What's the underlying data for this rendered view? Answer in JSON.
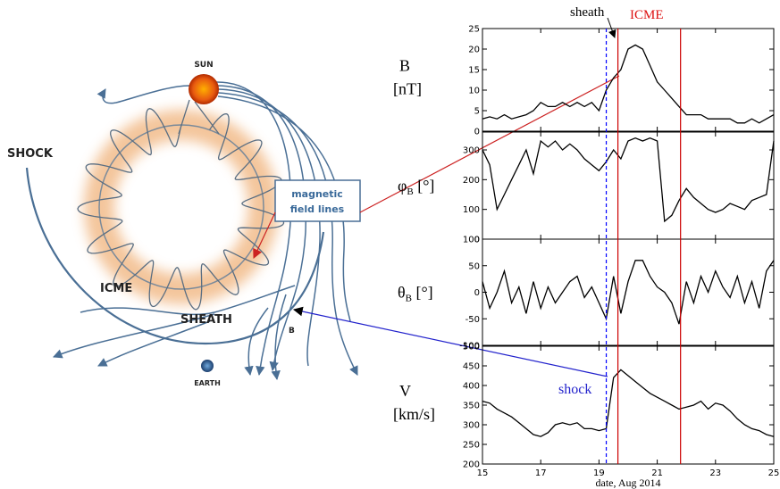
{
  "diagram": {
    "labels": {
      "sun": "SUN",
      "shock": "SHOCK",
      "box_line1": "magnetic",
      "box_line2": "field lines",
      "icme": "ICME",
      "sheath": "SHEATH",
      "b": "B",
      "earth": "EARTH"
    }
  },
  "chart_data": [
    {
      "type": "line",
      "ylabel": {
        "symbol": "B",
        "unit": "[nT]"
      },
      "color": "#000000",
      "xlim": [
        15,
        25
      ],
      "ylim": [
        0,
        25
      ],
      "yticks": [
        0,
        5,
        10,
        15,
        20,
        25
      ],
      "annotations": {
        "sheath": "sheath",
        "icme": "ICME"
      },
      "x": [
        15,
        15.25,
        15.5,
        15.75,
        16,
        16.25,
        16.5,
        16.75,
        17,
        17.25,
        17.5,
        17.75,
        18,
        18.25,
        18.5,
        18.75,
        19,
        19.25,
        19.5,
        19.75,
        20,
        20.25,
        20.5,
        20.75,
        21,
        21.25,
        21.5,
        21.75,
        22,
        22.25,
        22.5,
        22.75,
        23,
        23.25,
        23.5,
        23.75,
        24,
        24.25,
        24.5,
        24.75,
        25
      ],
      "values": [
        3,
        3.5,
        3,
        4,
        3,
        3.5,
        4,
        5,
        7,
        6,
        6,
        7,
        6,
        7,
        6,
        7,
        5,
        10,
        13,
        15,
        20,
        21,
        20,
        16,
        12,
        10,
        8,
        6,
        4,
        4,
        4,
        3,
        3,
        3,
        3,
        2,
        2,
        3,
        2,
        3,
        4
      ]
    },
    {
      "type": "line",
      "ylabel": {
        "symbol": "φ",
        "sub": "B",
        "unit": " [°]"
      },
      "color": "#000000",
      "xlim": [
        15,
        25
      ],
      "ylim": [
        0,
        360
      ],
      "yticks": [
        0,
        100,
        200,
        300
      ],
      "x": [
        15,
        15.25,
        15.5,
        15.75,
        16,
        16.25,
        16.5,
        16.75,
        17,
        17.25,
        17.5,
        17.75,
        18,
        18.25,
        18.5,
        18.75,
        19,
        19.25,
        19.5,
        19.75,
        20,
        20.25,
        20.5,
        20.75,
        21,
        21.25,
        21.5,
        21.75,
        22,
        22.25,
        22.5,
        22.75,
        23,
        23.25,
        23.5,
        23.75,
        24,
        24.25,
        24.5,
        24.75,
        25
      ],
      "values": [
        300,
        250,
        100,
        150,
        200,
        250,
        300,
        220,
        330,
        310,
        330,
        300,
        320,
        300,
        270,
        250,
        230,
        260,
        300,
        270,
        330,
        340,
        330,
        340,
        330,
        60,
        80,
        130,
        170,
        140,
        120,
        100,
        90,
        100,
        120,
        110,
        100,
        130,
        140,
        150,
        330
      ]
    },
    {
      "type": "line",
      "ylabel": {
        "symbol": "θ",
        "sub": "B",
        "unit": " [°]"
      },
      "color": "#000000",
      "xlim": [
        15,
        25
      ],
      "ylim": [
        -100,
        100
      ],
      "yticks": [
        -100,
        -50,
        0,
        50,
        100
      ],
      "x": [
        15,
        15.25,
        15.5,
        15.75,
        16,
        16.25,
        16.5,
        16.75,
        17,
        17.25,
        17.5,
        17.75,
        18,
        18.25,
        18.5,
        18.75,
        19,
        19.25,
        19.5,
        19.75,
        20,
        20.25,
        20.5,
        20.75,
        21,
        21.25,
        21.5,
        21.75,
        22,
        22.25,
        22.5,
        22.75,
        23,
        23.25,
        23.5,
        23.75,
        24,
        24.25,
        24.5,
        24.75,
        25
      ],
      "values": [
        20,
        -30,
        0,
        40,
        -20,
        10,
        -40,
        20,
        -30,
        10,
        -20,
        0,
        20,
        30,
        -10,
        10,
        -20,
        -50,
        30,
        -40,
        20,
        60,
        60,
        30,
        10,
        0,
        -20,
        -60,
        20,
        -20,
        30,
        0,
        40,
        10,
        -10,
        30,
        -20,
        20,
        -30,
        40,
        60
      ]
    },
    {
      "type": "line",
      "ylabel": {
        "symbol": "V",
        "unit": "[km/s]"
      },
      "color": "#000000",
      "xlim": [
        15,
        25
      ],
      "ylim": [
        200,
        500
      ],
      "yticks": [
        200,
        250,
        300,
        350,
        400,
        450,
        500
      ],
      "xticks": [
        15,
        17,
        19,
        21,
        23,
        25
      ],
      "xlabel": "date, Aug 2014",
      "annotations": {
        "shock": "shock"
      },
      "x": [
        15,
        15.25,
        15.5,
        15.75,
        16,
        16.25,
        16.5,
        16.75,
        17,
        17.25,
        17.5,
        17.75,
        18,
        18.25,
        18.5,
        18.75,
        19,
        19.25,
        19.5,
        19.75,
        20,
        20.25,
        20.5,
        20.75,
        21,
        21.25,
        21.5,
        21.75,
        22,
        22.25,
        22.5,
        22.75,
        23,
        23.25,
        23.5,
        23.75,
        24,
        24.25,
        24.5,
        24.75,
        25
      ],
      "values": [
        360,
        355,
        340,
        330,
        320,
        305,
        290,
        275,
        270,
        280,
        300,
        305,
        300,
        305,
        290,
        290,
        285,
        290,
        420,
        440,
        425,
        410,
        395,
        380,
        370,
        360,
        350,
        340,
        345,
        350,
        360,
        340,
        355,
        350,
        335,
        315,
        300,
        290,
        285,
        275,
        270
      ]
    }
  ],
  "event_lines": [
    {
      "x": 19.25,
      "color": "#0000ff",
      "dashed": true
    },
    {
      "x": 19.65,
      "color": "#cc0000",
      "dashed": false
    },
    {
      "x": 21.8,
      "color": "#cc0000",
      "dashed": false
    }
  ]
}
